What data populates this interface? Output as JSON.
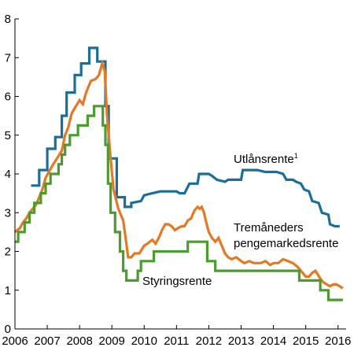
{
  "chart_data": {
    "type": "line",
    "title": "",
    "xlabel": "",
    "ylabel": "",
    "xlim": [
      2006.0,
      2016.25
    ],
    "ylim": [
      0,
      8
    ],
    "x_ticks": [
      "2006",
      "2007",
      "2008",
      "2009",
      "2010",
      "2011",
      "2012",
      "2013",
      "2014",
      "2015",
      "2016"
    ],
    "y_ticks": [
      "0",
      "1",
      "2",
      "3",
      "4",
      "5",
      "6",
      "7",
      "8"
    ],
    "grid": false,
    "legend": "none",
    "series": [
      {
        "name": "Utlånsrente",
        "sup": "1",
        "color": "#1a6f9a",
        "points": [
          [
            2006.5,
            3.7
          ],
          [
            2006.75,
            3.7
          ],
          [
            2006.75,
            4.1
          ],
          [
            2007.0,
            4.1
          ],
          [
            2007.0,
            4.65
          ],
          [
            2007.25,
            4.65
          ],
          [
            2007.25,
            4.95
          ],
          [
            2007.45,
            4.95
          ],
          [
            2007.45,
            5.5
          ],
          [
            2007.6,
            5.5
          ],
          [
            2007.6,
            6.1
          ],
          [
            2007.85,
            6.1
          ],
          [
            2007.85,
            6.55
          ],
          [
            2008.05,
            6.55
          ],
          [
            2008.05,
            6.85
          ],
          [
            2008.3,
            6.85
          ],
          [
            2008.3,
            7.25
          ],
          [
            2008.55,
            7.25
          ],
          [
            2008.55,
            6.9
          ],
          [
            2008.8,
            6.9
          ],
          [
            2008.8,
            5.75
          ],
          [
            2008.9,
            5.75
          ],
          [
            2008.9,
            4.4
          ],
          [
            2009.15,
            4.4
          ],
          [
            2009.15,
            3.4
          ],
          [
            2009.4,
            3.4
          ],
          [
            2009.4,
            3.15
          ],
          [
            2009.6,
            3.15
          ],
          [
            2009.6,
            3.25
          ],
          [
            2009.9,
            3.3
          ],
          [
            2010.0,
            3.45
          ],
          [
            2010.25,
            3.5
          ],
          [
            2010.5,
            3.55
          ],
          [
            2011.0,
            3.55
          ],
          [
            2011.1,
            3.5
          ],
          [
            2011.25,
            3.5
          ],
          [
            2011.4,
            3.75
          ],
          [
            2011.65,
            3.75
          ],
          [
            2011.7,
            4.0
          ],
          [
            2012.0,
            4.0
          ],
          [
            2012.1,
            3.95
          ],
          [
            2012.25,
            3.85
          ],
          [
            2012.5,
            3.8
          ],
          [
            2012.6,
            3.85
          ],
          [
            2013.0,
            3.85
          ],
          [
            2013.05,
            4.1
          ],
          [
            2013.5,
            4.1
          ],
          [
            2013.75,
            4.05
          ],
          [
            2014.1,
            4.05
          ],
          [
            2014.3,
            4.0
          ],
          [
            2014.4,
            3.85
          ],
          [
            2014.6,
            3.85
          ],
          [
            2014.7,
            3.8
          ],
          [
            2014.85,
            3.75
          ],
          [
            2014.95,
            3.6
          ],
          [
            2015.1,
            3.55
          ],
          [
            2015.2,
            3.3
          ],
          [
            2015.4,
            3.25
          ],
          [
            2015.5,
            3.0
          ],
          [
            2015.7,
            2.95
          ],
          [
            2015.75,
            2.7
          ],
          [
            2015.9,
            2.65
          ],
          [
            2016.05,
            2.65
          ]
        ]
      },
      {
        "name": "Tremåneders pengemarkedsrente",
        "color": "#e87722",
        "points": [
          [
            2006.0,
            2.5
          ],
          [
            2006.15,
            2.6
          ],
          [
            2006.25,
            2.75
          ],
          [
            2006.35,
            2.85
          ],
          [
            2006.45,
            3.0
          ],
          [
            2006.55,
            3.1
          ],
          [
            2006.65,
            3.2
          ],
          [
            2006.75,
            3.4
          ],
          [
            2006.85,
            3.6
          ],
          [
            2006.95,
            3.9
          ],
          [
            2007.05,
            4.05
          ],
          [
            2007.15,
            4.2
          ],
          [
            2007.3,
            4.4
          ],
          [
            2007.45,
            4.6
          ],
          [
            2007.55,
            5.0
          ],
          [
            2007.65,
            5.2
          ],
          [
            2007.75,
            5.55
          ],
          [
            2007.85,
            5.7
          ],
          [
            2008.0,
            5.9
          ],
          [
            2008.1,
            5.8
          ],
          [
            2008.2,
            6.1
          ],
          [
            2008.35,
            6.4
          ],
          [
            2008.5,
            6.45
          ],
          [
            2008.6,
            6.55
          ],
          [
            2008.7,
            6.85
          ],
          [
            2008.78,
            6.65
          ],
          [
            2008.85,
            5.5
          ],
          [
            2008.95,
            4.5
          ],
          [
            2009.05,
            3.6
          ],
          [
            2009.2,
            3.1
          ],
          [
            2009.35,
            2.8
          ],
          [
            2009.45,
            2.2
          ],
          [
            2009.5,
            1.85
          ],
          [
            2009.6,
            1.85
          ],
          [
            2009.7,
            1.95
          ],
          [
            2009.85,
            1.95
          ],
          [
            2010.0,
            2.15
          ],
          [
            2010.1,
            2.2
          ],
          [
            2010.25,
            2.3
          ],
          [
            2010.35,
            2.2
          ],
          [
            2010.45,
            2.35
          ],
          [
            2010.55,
            2.55
          ],
          [
            2010.65,
            2.7
          ],
          [
            2010.75,
            2.7
          ],
          [
            2010.85,
            2.65
          ],
          [
            2010.95,
            2.55
          ],
          [
            2011.05,
            2.6
          ],
          [
            2011.15,
            2.65
          ],
          [
            2011.25,
            2.65
          ],
          [
            2011.35,
            2.8
          ],
          [
            2011.45,
            2.85
          ],
          [
            2011.55,
            3.05
          ],
          [
            2011.65,
            3.15
          ],
          [
            2011.72,
            3.1
          ],
          [
            2011.78,
            3.15
          ],
          [
            2011.85,
            3.0
          ],
          [
            2011.92,
            2.75
          ],
          [
            2012.0,
            2.5
          ],
          [
            2012.1,
            2.35
          ],
          [
            2012.2,
            2.25
          ],
          [
            2012.3,
            2.35
          ],
          [
            2012.4,
            2.15
          ],
          [
            2012.5,
            1.95
          ],
          [
            2012.6,
            1.85
          ],
          [
            2012.7,
            1.8
          ],
          [
            2012.85,
            1.85
          ],
          [
            2013.0,
            1.75
          ],
          [
            2013.1,
            1.7
          ],
          [
            2013.25,
            1.75
          ],
          [
            2013.4,
            1.7
          ],
          [
            2013.6,
            1.7
          ],
          [
            2013.75,
            1.75
          ],
          [
            2013.9,
            1.65
          ],
          [
            2014.0,
            1.7
          ],
          [
            2014.15,
            1.7
          ],
          [
            2014.3,
            1.8
          ],
          [
            2014.45,
            1.75
          ],
          [
            2014.6,
            1.7
          ],
          [
            2014.75,
            1.6
          ],
          [
            2014.85,
            1.5
          ],
          [
            2015.0,
            1.35
          ],
          [
            2015.1,
            1.35
          ],
          [
            2015.2,
            1.45
          ],
          [
            2015.3,
            1.5
          ],
          [
            2015.45,
            1.3
          ],
          [
            2015.55,
            1.2
          ],
          [
            2015.65,
            1.15
          ],
          [
            2015.75,
            1.1
          ],
          [
            2015.85,
            1.15
          ],
          [
            2015.95,
            1.15
          ],
          [
            2016.05,
            1.1
          ],
          [
            2016.15,
            1.05
          ]
        ]
      },
      {
        "name": "Styringsrente",
        "color": "#4a9c2d",
        "points": [
          [
            2006.0,
            2.25
          ],
          [
            2006.1,
            2.25
          ],
          [
            2006.1,
            2.5
          ],
          [
            2006.3,
            2.5
          ],
          [
            2006.3,
            2.75
          ],
          [
            2006.45,
            2.75
          ],
          [
            2006.45,
            3.0
          ],
          [
            2006.6,
            3.0
          ],
          [
            2006.6,
            3.25
          ],
          [
            2006.8,
            3.25
          ],
          [
            2006.8,
            3.5
          ],
          [
            2006.95,
            3.5
          ],
          [
            2006.95,
            3.75
          ],
          [
            2007.1,
            3.75
          ],
          [
            2007.1,
            4.0
          ],
          [
            2007.35,
            4.0
          ],
          [
            2007.35,
            4.25
          ],
          [
            2007.45,
            4.25
          ],
          [
            2007.45,
            4.5
          ],
          [
            2007.55,
            4.5
          ],
          [
            2007.55,
            4.75
          ],
          [
            2007.7,
            4.75
          ],
          [
            2007.7,
            5.0
          ],
          [
            2007.95,
            5.0
          ],
          [
            2007.95,
            5.25
          ],
          [
            2008.25,
            5.25
          ],
          [
            2008.25,
            5.5
          ],
          [
            2008.45,
            5.5
          ],
          [
            2008.45,
            5.75
          ],
          [
            2008.72,
            5.75
          ],
          [
            2008.72,
            5.25
          ],
          [
            2008.8,
            5.25
          ],
          [
            2008.8,
            4.75
          ],
          [
            2008.88,
            4.75
          ],
          [
            2008.88,
            3.75
          ],
          [
            2008.96,
            3.75
          ],
          [
            2008.96,
            3.0
          ],
          [
            2009.1,
            3.0
          ],
          [
            2009.1,
            2.5
          ],
          [
            2009.25,
            2.5
          ],
          [
            2009.25,
            2.0
          ],
          [
            2009.35,
            2.0
          ],
          [
            2009.35,
            1.5
          ],
          [
            2009.45,
            1.5
          ],
          [
            2009.45,
            1.25
          ],
          [
            2009.8,
            1.25
          ],
          [
            2009.8,
            1.5
          ],
          [
            2009.9,
            1.5
          ],
          [
            2009.9,
            1.75
          ],
          [
            2010.3,
            1.75
          ],
          [
            2010.3,
            2.0
          ],
          [
            2011.35,
            2.0
          ],
          [
            2011.35,
            2.25
          ],
          [
            2011.95,
            2.25
          ],
          [
            2011.95,
            1.75
          ],
          [
            2012.2,
            1.75
          ],
          [
            2012.2,
            1.5
          ],
          [
            2014.8,
            1.5
          ],
          [
            2014.8,
            1.25
          ],
          [
            2015.45,
            1.25
          ],
          [
            2015.45,
            1.0
          ],
          [
            2015.7,
            1.0
          ],
          [
            2015.7,
            0.75
          ],
          [
            2016.15,
            0.75
          ]
        ]
      }
    ],
    "labels": {
      "utlansrente": "Utlånsrente",
      "utlansrente_sup": "1",
      "tremaneders_line1": "Tremåneders",
      "tremaneders_line2": "pengemarkedsrente",
      "styringsrente": "Styringsrente"
    }
  }
}
